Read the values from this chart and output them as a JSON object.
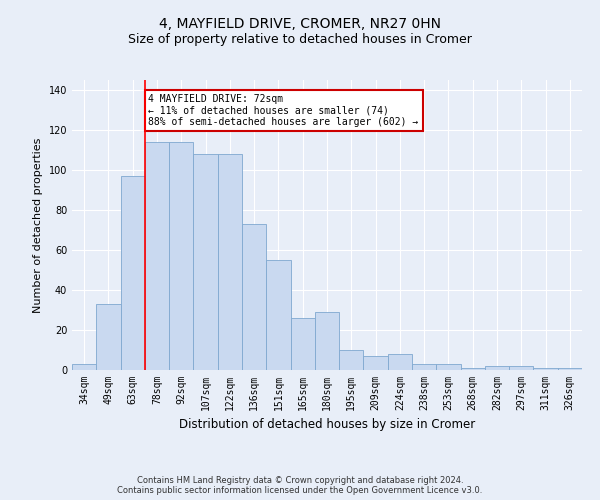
{
  "title": "4, MAYFIELD DRIVE, CROMER, NR27 0HN",
  "subtitle": "Size of property relative to detached houses in Cromer",
  "xlabel": "Distribution of detached houses by size in Cromer",
  "ylabel": "Number of detached properties",
  "categories": [
    "34sqm",
    "49sqm",
    "63sqm",
    "78sqm",
    "92sqm",
    "107sqm",
    "122sqm",
    "136sqm",
    "151sqm",
    "165sqm",
    "180sqm",
    "195sqm",
    "209sqm",
    "224sqm",
    "238sqm",
    "253sqm",
    "268sqm",
    "282sqm",
    "297sqm",
    "311sqm",
    "326sqm"
  ],
  "values": [
    3,
    33,
    97,
    114,
    114,
    108,
    108,
    73,
    55,
    26,
    29,
    10,
    7,
    8,
    3,
    3,
    1,
    2,
    2,
    1,
    1
  ],
  "bar_color": "#c9d9f0",
  "bar_edge_color": "#7fa8d0",
  "red_line_x": 2.5,
  "ylim": [
    0,
    145
  ],
  "yticks": [
    0,
    20,
    40,
    60,
    80,
    100,
    120,
    140
  ],
  "annotation_text": "4 MAYFIELD DRIVE: 72sqm\n← 11% of detached houses are smaller (74)\n88% of semi-detached houses are larger (602) →",
  "annotation_box_color": "#ffffff",
  "annotation_box_edge_color": "#cc0000",
  "footer_line1": "Contains HM Land Registry data © Crown copyright and database right 2024.",
  "footer_line2": "Contains public sector information licensed under the Open Government Licence v3.0.",
  "background_color": "#e8eef8",
  "plot_background_color": "#e8eef8",
  "grid_color": "#ffffff",
  "title_fontsize": 10,
  "subtitle_fontsize": 9,
  "tick_fontsize": 7,
  "ylabel_fontsize": 8,
  "xlabel_fontsize": 8.5,
  "annotation_fontsize": 7,
  "footer_fontsize": 6
}
